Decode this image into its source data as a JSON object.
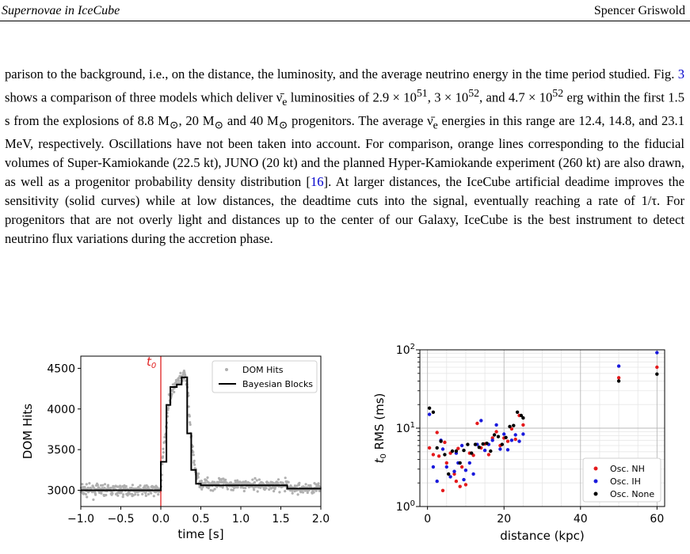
{
  "header": {
    "left": "Supernovae in IceCube",
    "right": "Spencer Griswold"
  },
  "paragraph": {
    "seg1": "parison to the background, i.e., on the distance, the luminosity, and the average neutrino energy in the time period studied. Fig. ",
    "fig_ref": "3",
    "seg2": " shows a comparison of three models which deliver ν̄",
    "e_sub1": "e",
    "seg3": " luminosities of 2.9 × 10",
    "exp1": "51",
    "seg4": ", 3 × 10",
    "exp2": "52",
    "seg5": ", and 4.7 × 10",
    "exp3": "52",
    "seg6": " erg within the first 1.5 s from the explosions of 8.8 M",
    "sun1": "⊙",
    "seg7": ", 20 M",
    "sun2": "⊙",
    "seg8": " and 40 M",
    "sun3": "⊙",
    "seg9": " progenitors. The average ν̄",
    "e_sub2": "e",
    "seg10": " energies in this range are 12.4, 14.8, and 23.1 MeV, respectively. Oscillations have not been taken into account. For comparison, orange lines corresponding to the fiducial volumes of Super-Kamiokande (22.5 kt), JUNO (20 kt) and the planned Hyper-Kamiokande experiment (260 kt) are also drawn, as well as a progenitor probability density distribution [",
    "cite": "16",
    "seg11": "]. At larger distances, the IceCube artificial deadime improves the sensitivity (solid curves) while at low distances, the deadtime cuts into the signal, eventually reaching a rate of 1/τ. For progenitors that are not overly light and distances up to the center of our Galaxy, IceCube is the best instrument to detect neutrino flux variations during the accretion phase."
  },
  "chart_data": [
    {
      "type": "scatter",
      "xlabel": "time [s]",
      "ylabel": "DOM Hits",
      "xlim": [
        -1.0,
        2.0
      ],
      "ylim": [
        2800,
        4650
      ],
      "xticks": [
        "−1.0",
        "−0.5",
        "0.0",
        "0.5",
        "1.0",
        "1.5",
        "2.0"
      ],
      "yticks": [
        "3000",
        "3500",
        "4000",
        "4500"
      ],
      "t0_label": "t0",
      "t0_x": 0.0,
      "legend": {
        "placement": "top-right",
        "dots": "DOM Hits",
        "line": "Bayesian Blocks"
      },
      "bayesian_blocks": [
        [
          -1.0,
          3000
        ],
        [
          0.0,
          3000
        ],
        [
          0.0,
          3350
        ],
        [
          0.07,
          3350
        ],
        [
          0.07,
          4050
        ],
        [
          0.12,
          4050
        ],
        [
          0.12,
          4270
        ],
        [
          0.2,
          4270
        ],
        [
          0.2,
          4300
        ],
        [
          0.26,
          4300
        ],
        [
          0.26,
          4390
        ],
        [
          0.33,
          4390
        ],
        [
          0.33,
          3700
        ],
        [
          0.38,
          3700
        ],
        [
          0.38,
          3250
        ],
        [
          0.44,
          3250
        ],
        [
          0.44,
          3080
        ],
        [
          0.5,
          3080
        ],
        [
          0.5,
          3060
        ],
        [
          1.58,
          3060
        ],
        [
          1.58,
          3020
        ],
        [
          2.0,
          3020
        ]
      ],
      "dom_hits_profile": [
        [
          -1.0,
          3000
        ],
        [
          0.0,
          3000
        ],
        [
          0.02,
          3350
        ],
        [
          0.1,
          4100
        ],
        [
          0.18,
          4300
        ],
        [
          0.3,
          4420
        ],
        [
          0.34,
          4200
        ],
        [
          0.38,
          3600
        ],
        [
          0.44,
          3200
        ],
        [
          0.5,
          3080
        ],
        [
          1.58,
          3060
        ],
        [
          1.6,
          3020
        ],
        [
          2.0,
          3020
        ]
      ],
      "dom_hits_spread": 55
    },
    {
      "type": "scatter",
      "xlabel": "distance (kpc)",
      "ylabel": "t0 RMS (ms)",
      "xlim": [
        -2,
        62
      ],
      "ylim": [
        1,
        100
      ],
      "yscale": "log",
      "xticks": [
        "0",
        "20",
        "40",
        "60"
      ],
      "yticks": [
        "10^0",
        "10^1",
        "10^2"
      ],
      "legend": {
        "placement": "bottom-right"
      },
      "series": [
        {
          "name": "Osc. NH",
          "color": "#e41a1c",
          "points": [
            [
              0.5,
              5.6
            ],
            [
              1.5,
              4.6
            ],
            [
              2.5,
              8.8
            ],
            [
              3,
              4.4
            ],
            [
              4,
              1.6
            ],
            [
              4.5,
              6.6
            ],
            [
              5,
              3.6
            ],
            [
              6,
              4.8
            ],
            [
              7,
              2.6
            ],
            [
              7.5,
              2.1
            ],
            [
              8,
              5.5
            ],
            [
              8.5,
              1.8
            ],
            [
              9,
              3.2
            ],
            [
              10,
              1.9
            ],
            [
              11,
              4.8
            ],
            [
              12,
              4.5
            ],
            [
              13,
              11.5
            ],
            [
              14,
              5.6
            ],
            [
              15,
              6.3
            ],
            [
              16,
              4.6
            ],
            [
              17,
              7.5
            ],
            [
              18,
              9
            ],
            [
              19,
              6
            ],
            [
              20,
              7.5
            ],
            [
              21,
              6.8
            ],
            [
              22,
              9.8
            ],
            [
              23,
              7.2
            ],
            [
              24,
              14.5
            ],
            [
              25,
              11
            ],
            [
              50,
              44
            ],
            [
              60,
              60
            ]
          ]
        },
        {
          "name": "Osc. IH",
          "color": "#1a1adc",
          "points": [
            [
              0.5,
              15
            ],
            [
              1.5,
              3.2
            ],
            [
              2.5,
              2.1
            ],
            [
              3.5,
              7
            ],
            [
              4,
              5.4
            ],
            [
              5,
              3.2
            ],
            [
              6,
              2.4
            ],
            [
              7,
              2.8
            ],
            [
              7.5,
              4.8
            ],
            [
              8,
              3.6
            ],
            [
              9,
              6
            ],
            [
              9.5,
              2.2
            ],
            [
              10,
              2.9
            ],
            [
              11,
              3.6
            ],
            [
              12,
              2.6
            ],
            [
              13,
              6.2
            ],
            [
              14,
              12.5
            ],
            [
              15,
              5.2
            ],
            [
              16,
              6.2
            ],
            [
              17,
              7
            ],
            [
              18,
              11
            ],
            [
              19,
              5.4
            ],
            [
              20,
              8.4
            ],
            [
              21,
              5.3
            ],
            [
              22,
              7
            ],
            [
              23,
              8.2
            ],
            [
              24,
              6.8
            ],
            [
              25,
              8.4
            ],
            [
              50,
              62
            ],
            [
              60,
              92
            ]
          ]
        },
        {
          "name": "Osc. None",
          "color": "#000000",
          "points": [
            [
              0.5,
              18
            ],
            [
              1.5,
              16
            ],
            [
              2.5,
              5.6
            ],
            [
              3.5,
              6.8
            ],
            [
              4.5,
              4.6
            ],
            [
              5.5,
              2.6
            ],
            [
              6.5,
              5.1
            ],
            [
              7.5,
              5.1
            ],
            [
              8.5,
              3.6
            ],
            [
              9.5,
              5.2
            ],
            [
              10.5,
              6.2
            ],
            [
              11.5,
              4.8
            ],
            [
              12.5,
              6.2
            ],
            [
              13.5,
              5.7
            ],
            [
              14.5,
              6.3
            ],
            [
              15.5,
              6.4
            ],
            [
              16.5,
              5.1
            ],
            [
              17.5,
              8.2
            ],
            [
              18.5,
              7.8
            ],
            [
              19.5,
              6.2
            ],
            [
              20.5,
              7.6
            ],
            [
              21.5,
              10.5
            ],
            [
              22.5,
              10.8
            ],
            [
              23.5,
              16
            ],
            [
              24.5,
              14.5
            ],
            [
              25,
              13.5
            ],
            [
              50,
              40
            ],
            [
              60,
              49
            ]
          ]
        }
      ]
    }
  ]
}
